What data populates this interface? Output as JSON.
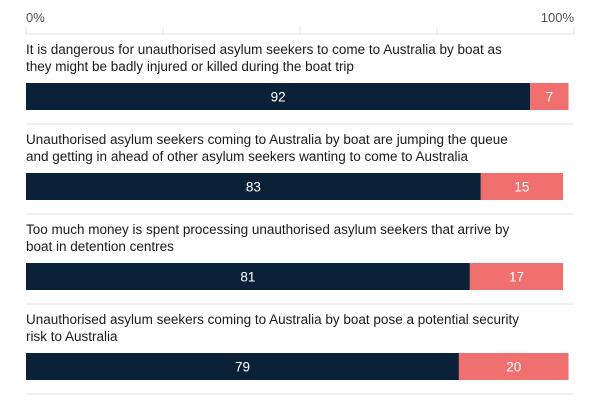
{
  "chart_data": {
    "type": "bar",
    "orientation": "horizontal-stacked",
    "axis": {
      "min_label": "0%",
      "max_label": "100%",
      "xlim": [
        0,
        100
      ]
    },
    "colors": {
      "agree": "#0b2138",
      "disagree": "#f07070",
      "grid": "#e3e3e3"
    },
    "items": [
      {
        "lines": [
          "It is dangerous for unauthorised asylum seekers to come to Australia by boat as",
          "they might be badly injured or killed during the boat trip"
        ],
        "values": [
          92,
          7
        ]
      },
      {
        "lines": [
          "Unauthorised asylum seekers coming to Australia by boat are jumping the queue",
          "and getting in ahead of other asylum seekers wanting to come to Australia"
        ],
        "values": [
          83,
          15
        ]
      },
      {
        "lines": [
          "Too much money is spent processing unauthorised asylum seekers that arrive by",
          "boat in detention centres"
        ],
        "values": [
          81,
          17
        ]
      },
      {
        "lines": [
          "Unauthorised asylum seekers coming to Australia by boat pose a potential security",
          "risk to Australia"
        ],
        "values": [
          79,
          20
        ]
      }
    ]
  }
}
